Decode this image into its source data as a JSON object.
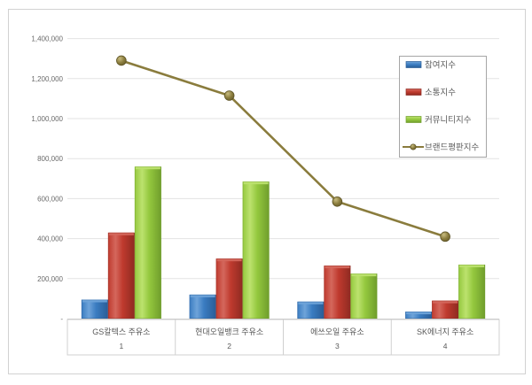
{
  "chart_data": {
    "type": "bar",
    "subtype": "grouped-bar-with-line-overlay",
    "title": "",
    "categories": [
      "GS칼텍스 주유소",
      "현대오일뱅크 주유소",
      "에쓰오일 주유소",
      "SK에너지 주유소"
    ],
    "category_numbers": [
      "1",
      "2",
      "3",
      "4"
    ],
    "series": [
      {
        "name": "참여지수",
        "type": "bar",
        "color": "#3a7cc1",
        "color_light": "#6ea3d9",
        "color_dark": "#2a5d96",
        "values": [
          95000,
          120000,
          85000,
          35000
        ]
      },
      {
        "name": "소통지수",
        "type": "bar",
        "color": "#bf3a2e",
        "color_light": "#d4675c",
        "color_dark": "#8e2a21",
        "values": [
          430000,
          300000,
          265000,
          90000
        ]
      },
      {
        "name": "커뮤니티지수",
        "type": "bar",
        "color": "#94c83e",
        "color_light": "#bce26e",
        "color_dark": "#6f9d2c",
        "values": [
          760000,
          685000,
          225000,
          270000
        ]
      },
      {
        "name": "브랜드평판지수",
        "type": "line",
        "color": "#8a7c3d",
        "color_light": "#c8bc80",
        "color_dark": "#5e5426",
        "values": [
          1290000,
          1115000,
          585000,
          410000
        ]
      }
    ],
    "ylim": [
      0,
      1400000
    ],
    "ytick_interval": 200000,
    "ytick_labels": [
      "-",
      "200,000",
      "400,000",
      "600,000",
      "800,000",
      "1,000,000",
      "1,200,000",
      "1,400,000"
    ],
    "grid": true,
    "legend_position": "upper-right"
  },
  "colors": {
    "background": "#ffffff",
    "gridline": "#e3e3e3",
    "axis_line": "#c9c9c9",
    "frame_border": "#d2d2d2",
    "band_border": "#d0d0d0",
    "legend_border": "#a6a6a6",
    "axis_text": "#6a6a6a",
    "label_text": "#595959"
  }
}
